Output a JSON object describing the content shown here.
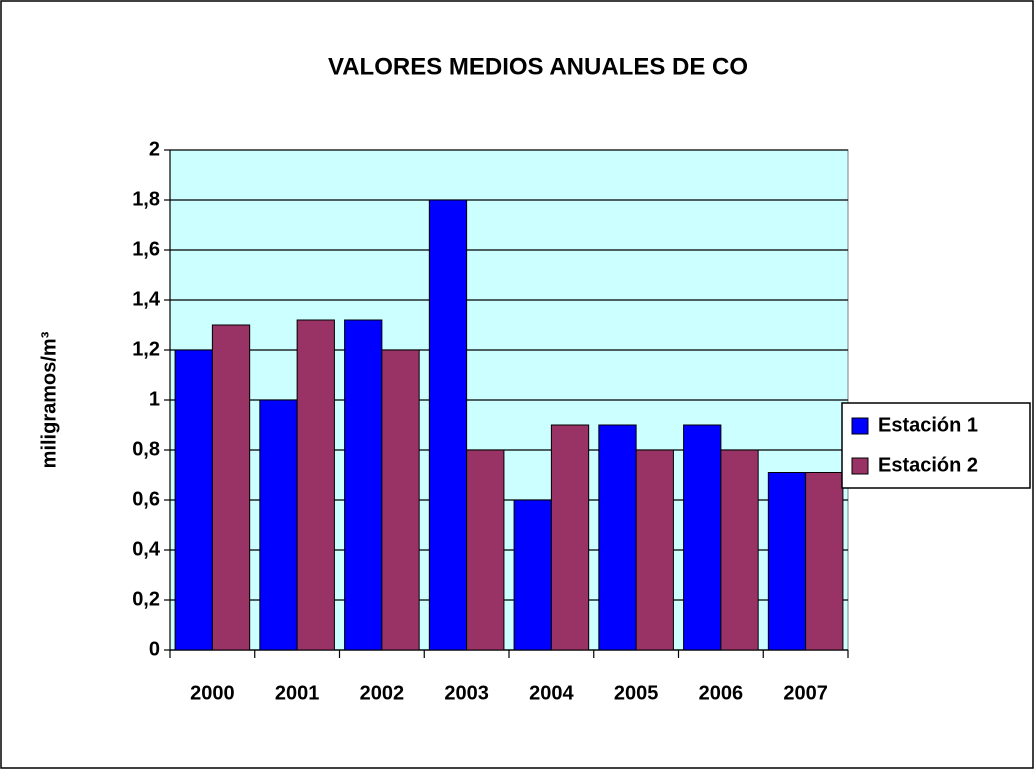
{
  "chart_data": {
    "type": "bar",
    "title": "VALORES MEDIOS ANUALES DE CO",
    "y_label": "miligramos/m³",
    "categories": [
      "2000",
      "2001",
      "2002",
      "2003",
      "2004",
      "2005",
      "2006",
      "2007"
    ],
    "series": [
      {
        "name": "Estación 1",
        "color": "#0000ff",
        "values": [
          1.2,
          1.0,
          1.32,
          1.8,
          0.6,
          0.9,
          0.9,
          0.71
        ]
      },
      {
        "name": "Estación 2",
        "color": "#993366",
        "values": [
          1.3,
          1.32,
          1.2,
          0.8,
          0.9,
          0.8,
          0.8,
          0.71
        ]
      }
    ],
    "ylim": [
      0,
      2
    ],
    "yticks": [
      0,
      {
        "value": 0.2,
        "label": "0,2"
      },
      {
        "value": 0.4,
        "label": "0,4"
      },
      {
        "value": 0.6,
        "label": "0,6"
      },
      {
        "value": 0.8,
        "label": "0,8"
      },
      1,
      {
        "value": 1.2,
        "label": "1,2"
      },
      {
        "value": 1.4,
        "label": "1,4"
      },
      {
        "value": 1.6,
        "label": "1,6"
      },
      {
        "value": 1.8,
        "label": "1,8"
      },
      2
    ],
    "grid": true,
    "legend": "right",
    "plot_background": "#ccffff"
  }
}
